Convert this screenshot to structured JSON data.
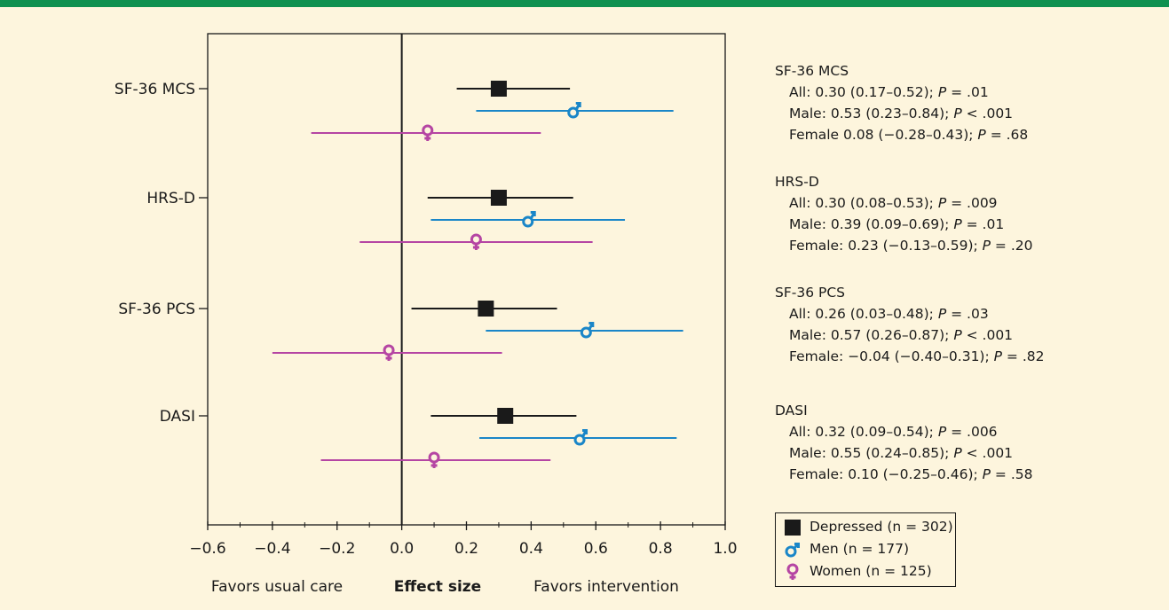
{
  "chart_data": {
    "type": "forest",
    "categories": [
      "SF-36 MCS",
      "HRS-D",
      "SF-36 PCS",
      "DASI"
    ],
    "series": [
      {
        "name": "Depressed (n = 302)",
        "color": "#1a1a1a",
        "marker": "square-icon",
        "points": [
          {
            "category": "SF-36 MCS",
            "value": 0.3,
            "ci": [
              0.17,
              0.52
            ]
          },
          {
            "category": "HRS-D",
            "value": 0.3,
            "ci": [
              0.08,
              0.53
            ]
          },
          {
            "category": "SF-36 PCS",
            "value": 0.26,
            "ci": [
              0.03,
              0.48
            ]
          },
          {
            "category": "DASI",
            "value": 0.32,
            "ci": [
              0.09,
              0.54
            ]
          }
        ]
      },
      {
        "name": "Men (n = 177)",
        "color": "#1a86c8",
        "marker": "male-symbol-icon",
        "points": [
          {
            "category": "SF-36 MCS",
            "value": 0.53,
            "ci": [
              0.23,
              0.84
            ]
          },
          {
            "category": "HRS-D",
            "value": 0.39,
            "ci": [
              0.09,
              0.69
            ]
          },
          {
            "category": "SF-36 PCS",
            "value": 0.57,
            "ci": [
              0.26,
              0.87
            ]
          },
          {
            "category": "DASI",
            "value": 0.55,
            "ci": [
              0.24,
              0.85
            ]
          }
        ]
      },
      {
        "name": "Women (n = 125)",
        "color": "#b545a3",
        "marker": "female-symbol-icon",
        "points": [
          {
            "category": "SF-36 MCS",
            "value": 0.08,
            "ci": [
              -0.28,
              0.43
            ]
          },
          {
            "category": "HRS-D",
            "value": 0.23,
            "ci": [
              -0.13,
              0.59
            ]
          },
          {
            "category": "SF-36 PCS",
            "value": -0.04,
            "ci": [
              -0.4,
              0.31
            ]
          },
          {
            "category": "DASI",
            "value": 0.1,
            "ci": [
              -0.25,
              0.46
            ]
          }
        ]
      }
    ],
    "xlim": [
      -0.6,
      1.0
    ],
    "xticks": [
      "−0.6",
      "−0.4",
      "−0.2",
      "0.0",
      "0.2",
      "0.4",
      "0.6",
      "0.8",
      "1.0"
    ],
    "xlabel": "Effect size",
    "xlabel_left": "Favors usual care",
    "xlabel_right": "Favors intervention",
    "reference_line": 0.0,
    "grid": false,
    "legend_position": "bottom-right, outside plot"
  },
  "annotations": [
    {
      "title": "SF-36 MCS",
      "lines": [
        {
          "pre": "All: 0.30 (0.17–0.52); ",
          "p": "P",
          "post": " = .01"
        },
        {
          "pre": "Male: 0.53 (0.23–0.84); ",
          "p": "P",
          "post": " < .001"
        },
        {
          "pre": "Female 0.08 (−0.28–0.43); ",
          "p": "P",
          "post": " = .68"
        }
      ]
    },
    {
      "title": "HRS-D",
      "lines": [
        {
          "pre": "All: 0.30 (0.08–0.53); ",
          "p": "P",
          "post": " = .009"
        },
        {
          "pre": "Male: 0.39 (0.09–0.69); ",
          "p": "P",
          "post": " = .01"
        },
        {
          "pre": "Female: 0.23 (−0.13–0.59); ",
          "p": "P",
          "post": " = .20"
        }
      ]
    },
    {
      "title": "SF-36 PCS",
      "lines": [
        {
          "pre": "All: 0.26 (0.03–0.48); ",
          "p": "P",
          "post": " = .03"
        },
        {
          "pre": "Male: 0.57 (0.26–0.87); ",
          "p": "P",
          "post": " < .001"
        },
        {
          "pre": "Female: −0.04 (−0.40–0.31); ",
          "p": "P",
          "post": " = .82"
        }
      ]
    },
    {
      "title": "DASI",
      "lines": [
        {
          "pre": "All: 0.32 (0.09–0.54); ",
          "p": "P",
          "post": " = .006"
        },
        {
          "pre": "Male: 0.55 (0.24–0.85); ",
          "p": "P",
          "post": " < .001"
        },
        {
          "pre": "Female: 0.10 (−0.25–0.46); ",
          "p": "P",
          "post": " = .58"
        }
      ]
    }
  ],
  "legend": [
    {
      "label": "Depressed (n = 302)",
      "icon": "square-icon",
      "color": "#1a1a1a"
    },
    {
      "label": "Men (n = 177)",
      "icon": "male-symbol-icon",
      "color": "#1a86c8"
    },
    {
      "label": "Women (n = 125)",
      "icon": "female-symbol-icon",
      "color": "#b545a3"
    }
  ],
  "colors": {
    "background": "#fdf5dd",
    "top_bar": "#0f9150"
  }
}
